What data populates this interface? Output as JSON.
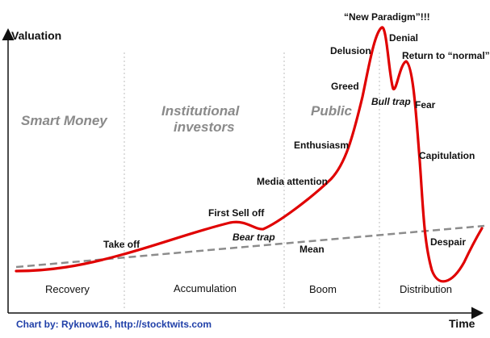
{
  "axes": {
    "y_label": "Valuation",
    "x_label": "Time"
  },
  "phases": {
    "smart_money": "Smart Money",
    "institutional_line1": "Institutional",
    "institutional_line2": "investors",
    "public": "Public"
  },
  "stages": {
    "recovery": "Recovery",
    "accumulation": "Accumulation",
    "boom": "Boom",
    "distribution": "Distribution"
  },
  "annotations": {
    "take_off": "Take off",
    "first_sell_off": "First Sell off",
    "bear_trap": "Bear trap",
    "media_attention": "Media attention",
    "enthusiasm": "Enthusiasm",
    "greed": "Greed",
    "delusion": "Delusion",
    "new_paradigm": "“New Paradigm”!!!",
    "denial": "Denial",
    "bull_trap": "Bull trap",
    "return_to_normal": "Return to “normal”",
    "fear": "Fear",
    "capitulation": "Capitulation",
    "despair": "Despair",
    "mean": "Mean"
  },
  "credit": "Chart by: Ryknow16,  http://stocktwits.com",
  "colors": {
    "curve": "#e00000",
    "mean": "#8c8c8c",
    "divider": "#bdbdbd",
    "credit": "#1f3fa8"
  }
}
